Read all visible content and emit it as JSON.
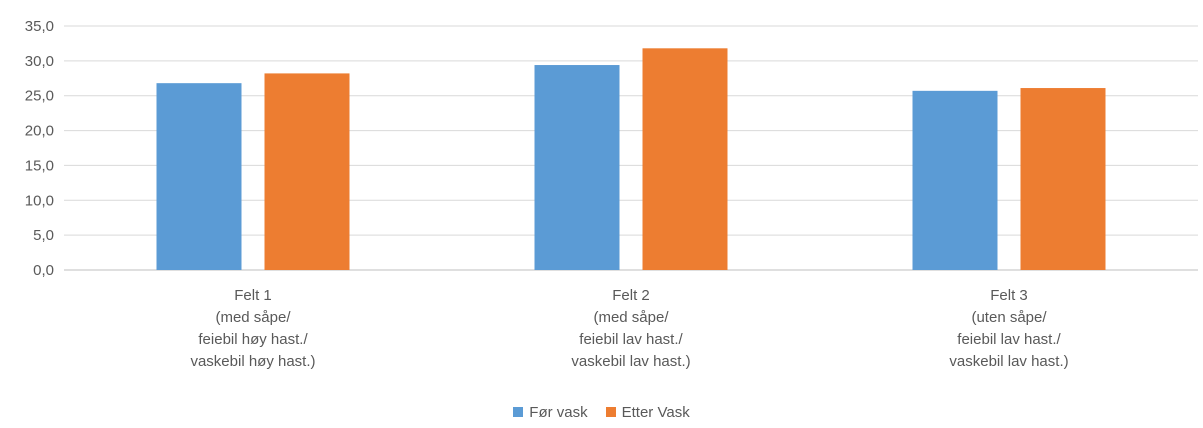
{
  "chart_data": {
    "type": "bar",
    "categories": [
      [
        "Felt 1",
        "(med såpe/",
        "feiebil høy hast./",
        "vaskebil høy hast.)"
      ],
      [
        "Felt 2",
        "(med såpe/",
        "feiebil lav hast./",
        "vaskebil lav hast.)"
      ],
      [
        "Felt 3",
        "(uten såpe/",
        "feiebil lav hast./",
        "vaskebil lav hast.)"
      ]
    ],
    "series": [
      {
        "name": "Før vask",
        "color": "#5B9BD5",
        "values": [
          26.8,
          29.4,
          25.7
        ]
      },
      {
        "name": "Etter Vask",
        "color": "#ED7D31",
        "values": [
          28.2,
          31.8,
          26.1
        ]
      }
    ],
    "yticks": [
      "0,0",
      "5,0",
      "10,0",
      "15,0",
      "20,0",
      "25,0",
      "30,0",
      "35,0"
    ],
    "ylim": [
      0,
      35
    ],
    "grid": true,
    "legend_position": "bottom",
    "title": "",
    "xlabel": "",
    "ylabel": ""
  }
}
